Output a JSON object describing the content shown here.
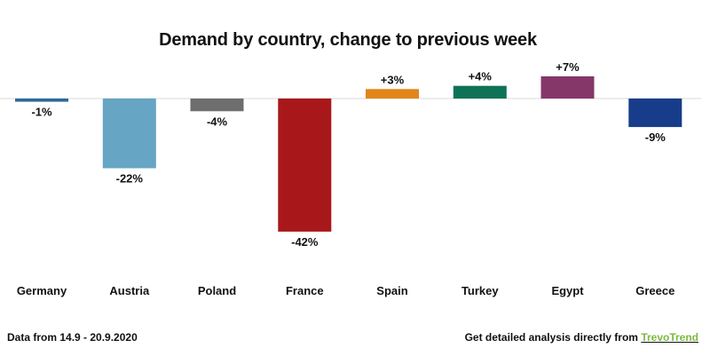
{
  "chart_data": {
    "type": "bar",
    "title": "Demand by country, change to previous week",
    "categories": [
      "Germany",
      "Austria",
      "Poland",
      "France",
      "Spain",
      "Turkey",
      "Egypt",
      "Greece"
    ],
    "values": [
      -1,
      -22,
      -4,
      -42,
      3,
      4,
      7,
      -9
    ],
    "data_labels": [
      "-1%",
      "-22%",
      "-4%",
      "-42%",
      "+3%",
      "+4%",
      "+7%",
      "-9%"
    ],
    "colors": [
      "#2e6a97",
      "#66a5c4",
      "#6e6e6e",
      "#a8181b",
      "#e1851d",
      "#0f7257",
      "#853769",
      "#173d8a"
    ],
    "xlabel": "",
    "ylabel": "",
    "ylim": [
      -42,
      7
    ],
    "grid": false,
    "legend": "none"
  },
  "footer": {
    "source_note": "Data from 14.9 - 20.9.2020",
    "cta_text": "Get detailed analysis directly from ",
    "brand_part1": "Trevo",
    "brand_part2": "Trend"
  }
}
